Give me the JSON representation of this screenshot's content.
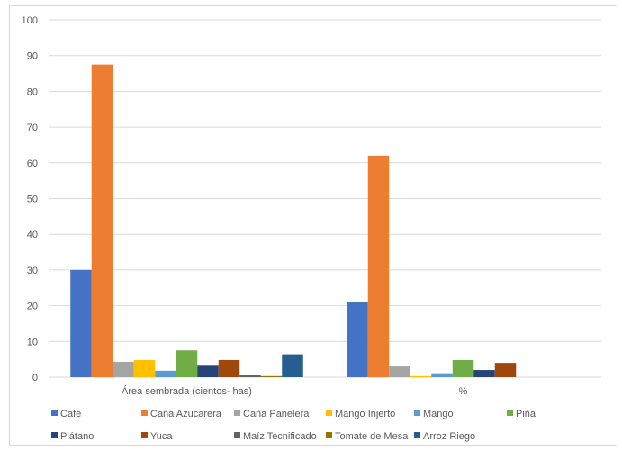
{
  "chart_data": {
    "type": "bar",
    "categories": [
      "Área sembrada (cientos- has)",
      "%"
    ],
    "ylim": [
      0,
      100
    ],
    "yticks": [
      0,
      10,
      20,
      30,
      40,
      50,
      60,
      70,
      80,
      90,
      100
    ],
    "grid": true,
    "legend_position": "bottom",
    "series": [
      {
        "name": "Café",
        "color": "#4472C4",
        "values": [
          30,
          21
        ]
      },
      {
        "name": "Caña Azucarera",
        "color": "#ED7D31",
        "values": [
          87.5,
          62
        ]
      },
      {
        "name": "Caña Panelera",
        "color": "#A5A5A5",
        "values": [
          4.3,
          3
        ]
      },
      {
        "name": "Mango Injerto",
        "color": "#FFC000",
        "values": [
          4.8,
          0.3
        ]
      },
      {
        "name": "Mango",
        "color": "#5B9BD5",
        "values": [
          1.8,
          1.1
        ]
      },
      {
        "name": "Piña",
        "color": "#70AD47",
        "values": [
          7.5,
          4.8
        ]
      },
      {
        "name": "Plátano",
        "color": "#264478",
        "values": [
          3.2,
          2
        ]
      },
      {
        "name": "Yuca",
        "color": "#9E480E",
        "values": [
          4.8,
          4
        ]
      },
      {
        "name": "Maíz Tecnificado",
        "color": "#636363",
        "values": [
          0.5,
          0
        ]
      },
      {
        "name": "Tomate de Mesa",
        "color": "#997300",
        "values": [
          0.3,
          0
        ]
      },
      {
        "name": "Arroz Riego",
        "color": "#255E91",
        "values": [
          6.4,
          0
        ]
      }
    ]
  }
}
